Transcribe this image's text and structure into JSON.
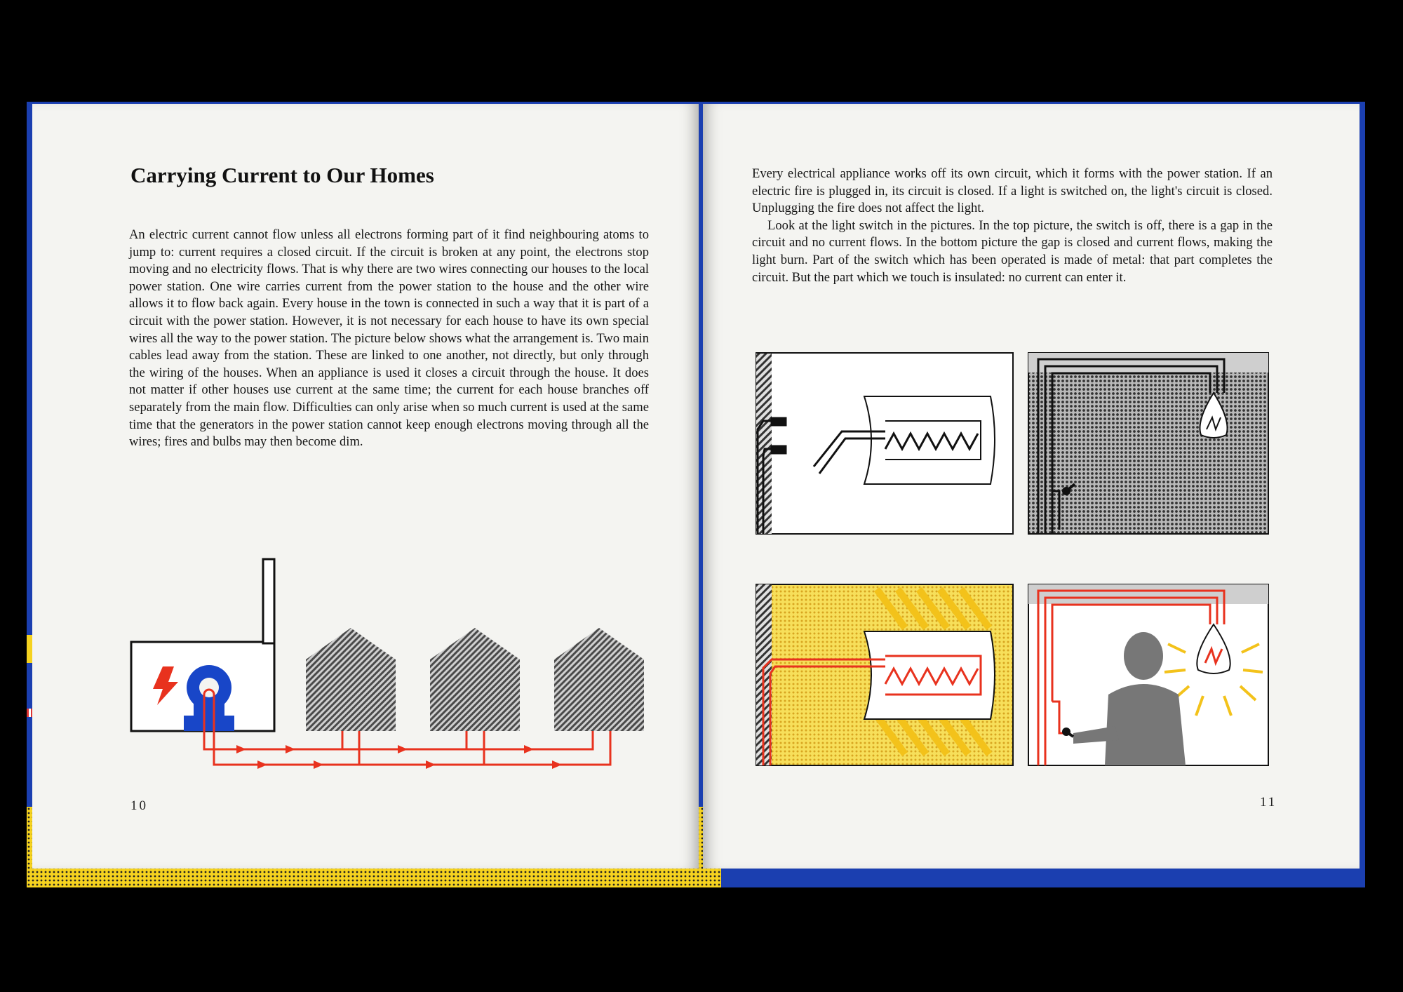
{
  "left_page": {
    "title": "Carrying Current to Our Homes",
    "body": "An electric current cannot flow unless all electrons forming part of it find neighbouring atoms to jump to: current requires a closed circuit. If the circuit is broken at any point, the electrons stop moving and no electricity flows. That is why there are two wires connecting our houses to the local power station. One wire carries current from the power station to the house and the other wire allows it to flow back again. Every house in the town is connected in such a way that it is part of a circuit with the power station. However, it is not necessary for each house to have its own special wires all the way to the power station. The picture below shows what the arrangement is. Two main cables lead away from the station. These are linked to one another, not directly, but only through the wiring of the houses. When an appliance is used it closes a circuit through the house. It does not matter if other houses use current at the same time; the current for each house branches off separately from the main flow. Difficulties can only arise when so much current is used at the same time that the generators in the power station cannot keep enough electrons moving through all the wires; fires and bulbs may then become dim.",
    "page_number": "10"
  },
  "right_page": {
    "paragraph_1": "Every electrical appliance works off its own circuit, which it forms with the power station. If an electric fire is plugged in, its circuit is closed. If a light is switched on, the light's circuit is closed. Unplugging the fire does not affect the light.",
    "paragraph_2": "Look at the light switch in the pictures. In the top picture, the switch is off, there is a gap in the circuit and no current flows. In the bottom picture the gap is closed and current flows, making the light burn. Part of the switch which has been operated is made of metal: that part completes the circuit. But the part which we touch is insulated: no current can enter it.",
    "page_number": "11"
  },
  "colors": {
    "wire_red": "#e8321e",
    "generator_blue": "#1846c8",
    "fire_yellow": "#f3d22a",
    "cover_blue": "#1b3fb0"
  }
}
